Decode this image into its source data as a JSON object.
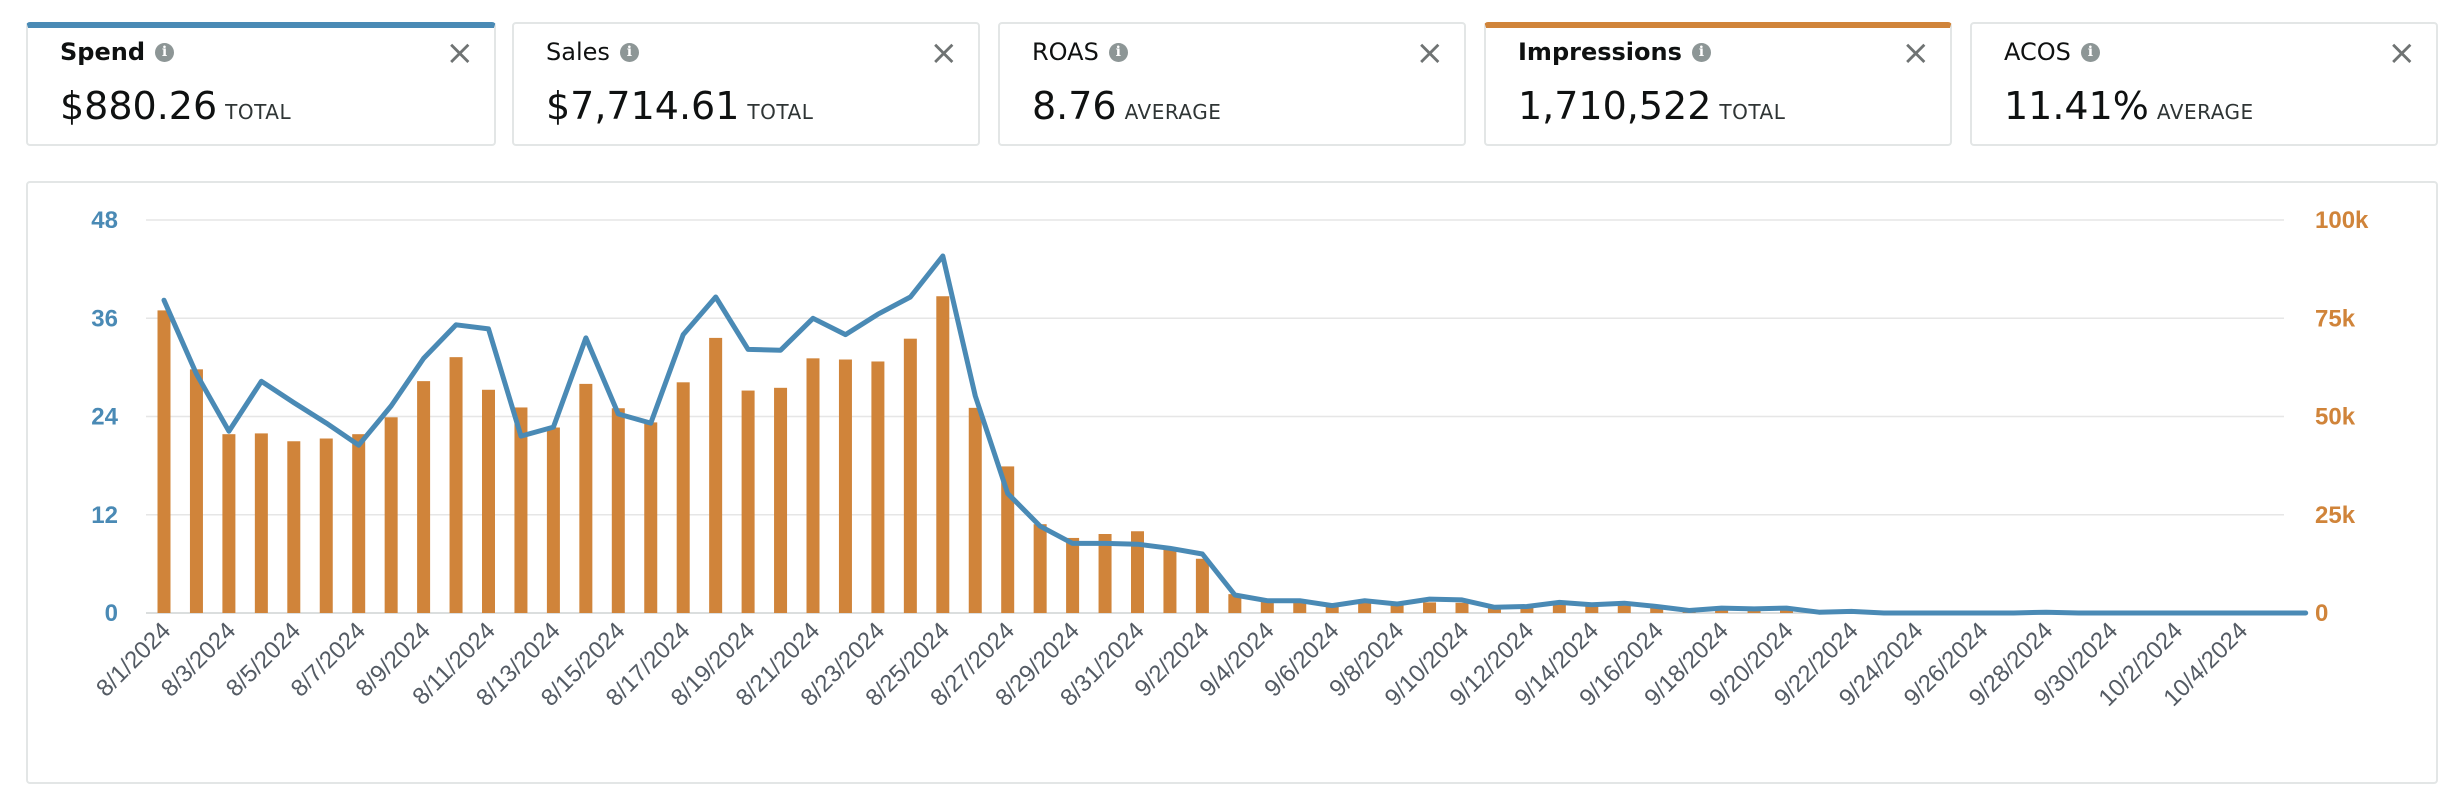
{
  "cards": [
    {
      "title": "Spend",
      "value": "$880.26",
      "unit": "TOTAL"
    },
    {
      "title": "Sales",
      "value": "$7,714.61",
      "unit": "TOTAL"
    },
    {
      "title": "ROAS",
      "value": "8.76",
      "unit": "AVERAGE"
    },
    {
      "title": "Impressions",
      "value": "1,710,522",
      "unit": "TOTAL"
    },
    {
      "title": "ACOS",
      "value": "11.41%",
      "unit": "AVERAGE"
    }
  ],
  "icons": {
    "info": "info-icon",
    "close": "close-icon"
  },
  "colors": {
    "spend": "#4a8ab5",
    "impressions": "#d0843a",
    "grid": "#e6e6e6"
  },
  "chart_data": {
    "type": "bar",
    "x": [
      "8/1/2024",
      "8/2/2024",
      "8/3/2024",
      "8/4/2024",
      "8/5/2024",
      "8/6/2024",
      "8/7/2024",
      "8/8/2024",
      "8/9/2024",
      "8/10/2024",
      "8/11/2024",
      "8/12/2024",
      "8/13/2024",
      "8/14/2024",
      "8/15/2024",
      "8/16/2024",
      "8/17/2024",
      "8/18/2024",
      "8/19/2024",
      "8/20/2024",
      "8/21/2024",
      "8/22/2024",
      "8/23/2024",
      "8/24/2024",
      "8/25/2024",
      "8/26/2024",
      "8/27/2024",
      "8/28/2024",
      "8/29/2024",
      "8/30/2024",
      "8/31/2024",
      "9/1/2024",
      "9/2/2024",
      "9/3/2024",
      "9/4/2024",
      "9/5/2024",
      "9/6/2024",
      "9/7/2024",
      "9/8/2024",
      "9/9/2024",
      "9/10/2024",
      "9/11/2024",
      "9/12/2024",
      "9/13/2024",
      "9/14/2024",
      "9/15/2024",
      "9/16/2024",
      "9/17/2024",
      "9/18/2024",
      "9/19/2024",
      "9/20/2024",
      "9/21/2024",
      "9/22/2024",
      "9/23/2024",
      "9/24/2024",
      "9/25/2024",
      "9/26/2024",
      "9/27/2024",
      "9/28/2024",
      "9/29/2024",
      "9/30/2024",
      "10/1/2024",
      "10/2/2024",
      "10/3/2024",
      "10/4/2024",
      "10/5/2024",
      "10/6/2024"
    ],
    "xtick_labels": [
      "8/1/2024",
      "8/3/2024",
      "8/5/2024",
      "8/7/2024",
      "8/9/2024",
      "8/11/2024",
      "8/13/2024",
      "8/15/2024",
      "8/17/2024",
      "8/19/2024",
      "8/21/2024",
      "8/23/2024",
      "8/25/2024",
      "8/27/2024",
      "8/29/2024",
      "8/31/2024",
      "9/2/2024",
      "9/4/2024",
      "9/6/2024",
      "9/8/2024",
      "9/10/2024",
      "9/12/2024",
      "9/14/2024",
      "9/16/2024",
      "9/18/2024",
      "9/20/2024",
      "9/22/2024",
      "9/24/2024",
      "9/26/2024",
      "9/28/2024",
      "9/30/2024",
      "10/2/2024",
      "10/4/2024"
    ],
    "y_left_ticks": [
      "0",
      "12",
      "24",
      "36",
      "48"
    ],
    "y_left_lim": [
      0,
      48
    ],
    "y_right_ticks": [
      "0",
      "25k",
      "50k",
      "75k",
      "100k"
    ],
    "y_right_lim": [
      0,
      100000
    ],
    "grid": true,
    "series": [
      {
        "name": "Impressions",
        "type": "bar",
        "axis": "right",
        "values": [
          77000,
          62000,
          45500,
          45700,
          43700,
          44400,
          45500,
          49800,
          59000,
          65100,
          56800,
          52300,
          47200,
          58300,
          52100,
          48500,
          58700,
          70000,
          56600,
          57300,
          64800,
          64500,
          64000,
          69800,
          80600,
          52200,
          37300,
          22600,
          19100,
          20100,
          20800,
          16400,
          13800,
          4800,
          3000,
          3000,
          1900,
          2600,
          1900,
          2700,
          2600,
          1800,
          1700,
          2100,
          2000,
          1900,
          1500,
          700,
          1200,
          1100,
          1200,
          300,
          700,
          0,
          0,
          0,
          0,
          0,
          0,
          0,
          0,
          0,
          0,
          0,
          0,
          0,
          0
        ]
      },
      {
        "name": "Spend",
        "type": "line",
        "axis": "left",
        "values": [
          38.2,
          29.2,
          22.2,
          28.3,
          25.7,
          23.2,
          20.5,
          25.3,
          31.1,
          35.2,
          34.7,
          21.6,
          22.7,
          33.6,
          24.3,
          23.2,
          34.0,
          38.6,
          32.2,
          32.1,
          36.0,
          34.0,
          36.5,
          38.6,
          43.6,
          26.5,
          14.6,
          10.6,
          8.5,
          8.5,
          8.4,
          7.9,
          7.2,
          2.2,
          1.5,
          1.5,
          0.9,
          1.5,
          1.1,
          1.7,
          1.6,
          0.7,
          0.8,
          1.3,
          1.0,
          1.2,
          0.8,
          0.3,
          0.6,
          0.5,
          0.6,
          0.1,
          0.2,
          0.0,
          0.0,
          0.0,
          0.0,
          0.0,
          0.1,
          0.0,
          0.0,
          0.0,
          0.0,
          0.0,
          0.0,
          0.0,
          0.0
        ]
      }
    ]
  }
}
